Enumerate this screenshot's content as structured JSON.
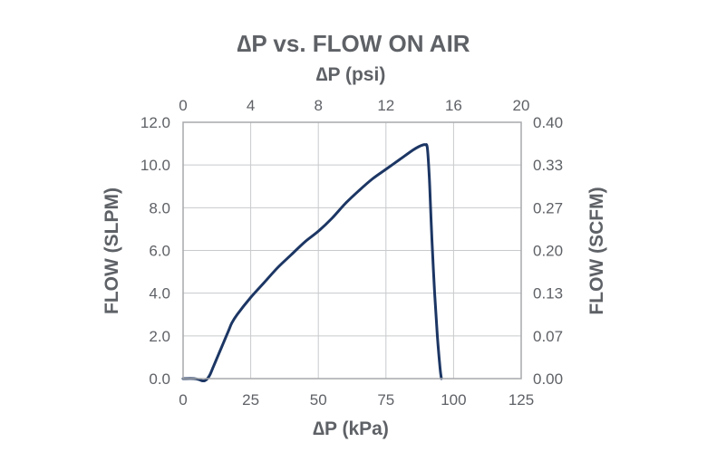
{
  "chart_data": {
    "type": "line",
    "title": "∆P vs. FLOW ON AIR",
    "x_top_label": "∆P (psi)",
    "xlabel": "∆P (kPa)",
    "ylabel_left": "FLOW (SLPM)",
    "ylabel_right": "FLOW (SCFM)",
    "xlim": [
      0,
      125
    ],
    "ylim": [
      0,
      12
    ],
    "x_ticks": [
      "0",
      "25",
      "50",
      "75",
      "100",
      "125"
    ],
    "x_top_ticks": [
      "0",
      "4",
      "8",
      "12",
      "16",
      "20"
    ],
    "y_left_ticks": [
      "0.0",
      "2.0",
      "4.0",
      "6.0",
      "8.0",
      "10.0",
      "12.0"
    ],
    "y_right_ticks": [
      "0.00",
      "0.07",
      "0.13",
      "0.20",
      "0.27",
      "0.33",
      "0.40"
    ],
    "grid": true,
    "series": [
      {
        "color": "#1c3664",
        "x": [
          0,
          4,
          6,
          7,
          8,
          9,
          10,
          11,
          12,
          13,
          14,
          15,
          16,
          17,
          18,
          20,
          25,
          30,
          35,
          40,
          45,
          50,
          55,
          60,
          65,
          70,
          75,
          80,
          85,
          87,
          88.5,
          89.5,
          90.3,
          91,
          91.5,
          92,
          93,
          94,
          95,
          95.5
        ],
        "y": [
          0.0,
          0.0,
          -0.05,
          -0.1,
          -0.1,
          0.0,
          0.2,
          0.5,
          0.8,
          1.1,
          1.4,
          1.7,
          2.0,
          2.3,
          2.6,
          3.0,
          3.8,
          4.5,
          5.2,
          5.8,
          6.4,
          6.9,
          7.5,
          8.2,
          8.8,
          9.35,
          9.8,
          10.25,
          10.7,
          10.85,
          10.93,
          10.95,
          10.8,
          9.5,
          8.0,
          6.5,
          4.0,
          2.0,
          0.5,
          0.0
        ]
      }
    ]
  },
  "colors": {
    "text": "#5e6166",
    "axis": "#a7a9ac",
    "grid": "#c8cacc",
    "line": "#1c3664"
  }
}
